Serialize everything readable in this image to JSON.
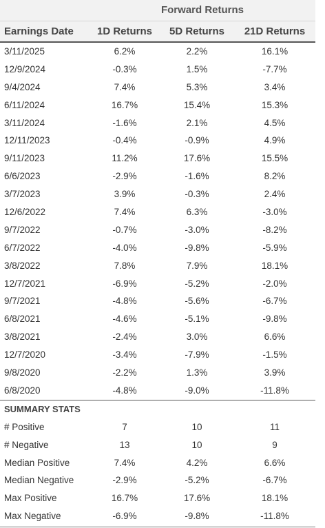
{
  "table": {
    "group_header": "Forward Returns",
    "columns": [
      "Earnings Date",
      "1D Returns",
      "5D Returns",
      "21D Returns"
    ],
    "rows": [
      [
        "3/11/2025",
        "6.2%",
        "2.2%",
        "16.1%"
      ],
      [
        "12/9/2024",
        "-0.3%",
        "1.5%",
        "-7.7%"
      ],
      [
        "9/4/2024",
        "7.4%",
        "5.3%",
        "3.4%"
      ],
      [
        "6/11/2024",
        "16.7%",
        "15.4%",
        "15.3%"
      ],
      [
        "3/11/2024",
        "-1.6%",
        "2.1%",
        "4.5%"
      ],
      [
        "12/11/2023",
        "-0.4%",
        "-0.9%",
        "4.9%"
      ],
      [
        "9/11/2023",
        "11.2%",
        "17.6%",
        "15.5%"
      ],
      [
        "6/6/2023",
        "-2.9%",
        "-1.6%",
        "8.2%"
      ],
      [
        "3/7/2023",
        "3.9%",
        "-0.3%",
        "2.4%"
      ],
      [
        "12/6/2022",
        "7.4%",
        "6.3%",
        "-3.0%"
      ],
      [
        "9/7/2022",
        "-0.7%",
        "-3.0%",
        "-8.2%"
      ],
      [
        "6/7/2022",
        "-4.0%",
        "-9.8%",
        "-5.9%"
      ],
      [
        "3/8/2022",
        "7.8%",
        "7.9%",
        "18.1%"
      ],
      [
        "12/7/2021",
        "-6.9%",
        "-5.2%",
        "-2.0%"
      ],
      [
        "9/7/2021",
        "-4.8%",
        "-5.6%",
        "-6.7%"
      ],
      [
        "6/8/2021",
        "-4.6%",
        "-5.1%",
        "-9.8%"
      ],
      [
        "3/8/2021",
        "-2.4%",
        "3.0%",
        "6.6%"
      ],
      [
        "12/7/2020",
        "-3.4%",
        "-7.9%",
        "-1.5%"
      ],
      [
        "9/8/2020",
        "-2.2%",
        "1.3%",
        "3.9%"
      ],
      [
        "6/8/2020",
        "-4.8%",
        "-9.0%",
        "-11.8%"
      ]
    ]
  },
  "summary": {
    "title": "SUMMARY STATS",
    "rows": [
      [
        "# Positive",
        "7",
        "10",
        "11"
      ],
      [
        "# Negative",
        "13",
        "10",
        "9"
      ],
      [
        "Median Positive",
        "7.4%",
        "4.2%",
        "6.6%"
      ],
      [
        "Median Negative",
        "-2.9%",
        "-5.2%",
        "-6.7%"
      ],
      [
        "Max Positive",
        "16.7%",
        "17.6%",
        "18.1%"
      ],
      [
        "Max Negative",
        "-6.9%",
        "-9.8%",
        "-11.8%"
      ]
    ]
  }
}
